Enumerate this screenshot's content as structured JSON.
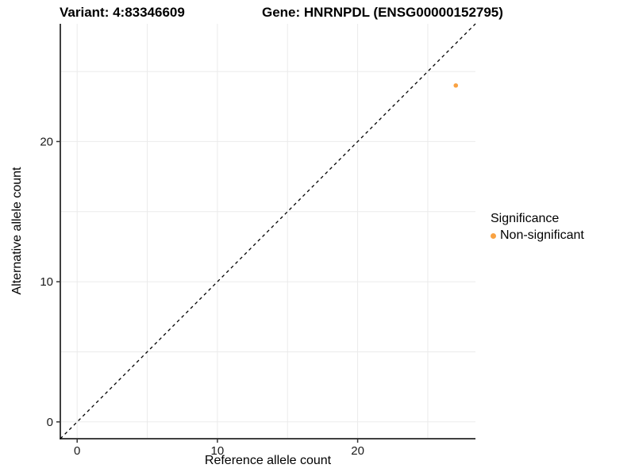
{
  "chart_data": {
    "type": "scatter",
    "titles": {
      "left": "Variant: 4:83346609",
      "right": "Gene: HNRNPDL (ENSG00000152795)"
    },
    "xlabel": "Reference allele count",
    "ylabel": "Alternative allele count",
    "xlim": [
      -1.2,
      28.4
    ],
    "ylim": [
      -1.2,
      28.4
    ],
    "xticks": [
      0,
      10,
      20
    ],
    "yticks": [
      0,
      10,
      20
    ],
    "grid_positions": [
      0,
      5,
      10,
      15,
      20,
      25
    ],
    "grid_on": true,
    "identity_line": {
      "type": "y=x",
      "dashed": true,
      "color": "#000000"
    },
    "series": [
      {
        "name": "Non-significant",
        "color": "#F9A242",
        "points": [
          [
            27,
            24
          ]
        ]
      }
    ],
    "legend": {
      "title": "Significance",
      "position": "right",
      "items": [
        {
          "label": "Non-significant",
          "color": "#F9A242"
        }
      ]
    },
    "colors": {
      "grid": "#EBEBEB",
      "axis": "#404040",
      "tick": "#333333",
      "text": "#000000"
    }
  }
}
